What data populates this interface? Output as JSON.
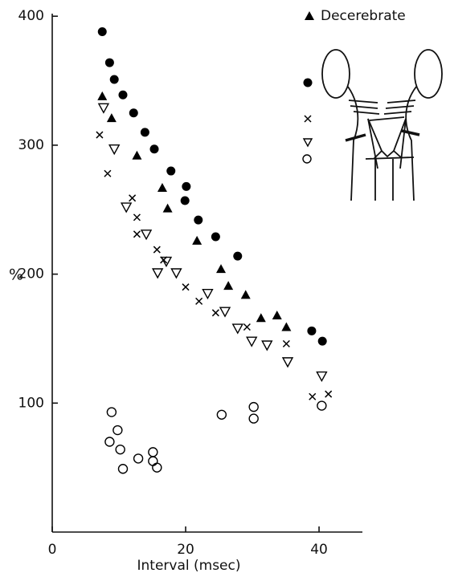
{
  "chart_data": {
    "type": "scatter",
    "xlabel": "Interval (msec)",
    "ylabel": "%",
    "xlim": [
      0,
      46.5
    ],
    "ylim": [
      0,
      402
    ],
    "xticks": [
      0,
      20,
      40
    ],
    "yticks": [
      100,
      200,
      300,
      400
    ],
    "legend": "upper right",
    "series": [
      {
        "marker": "filled-circle",
        "color": "#000000",
        "x": [
          7.5,
          8.6,
          9.3,
          10.6,
          12.2,
          13.9,
          15.3,
          17.8,
          20.1,
          19.9,
          21.9,
          24.5,
          27.8,
          38.9,
          40.5
        ],
        "values": [
          388,
          364,
          351,
          339,
          325,
          310,
          297,
          280,
          268,
          257,
          242,
          229,
          214,
          156,
          148
        ]
      },
      {
        "name": "Decerebrate",
        "marker": "filled-triangle",
        "color": "#000000",
        "x": [
          7.5,
          8.9,
          12.7,
          16.5,
          17.3,
          21.7,
          25.3,
          26.4,
          29,
          31.3,
          33.7,
          35.1
        ],
        "values": [
          338,
          321,
          292,
          267,
          251,
          226,
          204,
          191,
          184,
          166,
          168,
          159
        ]
      },
      {
        "marker": "cross",
        "color": "#000000",
        "x": [
          7.1,
          8.3,
          12,
          12.7,
          12.7,
          15.7,
          16.7,
          20,
          22,
          24.5,
          29.2,
          35.1,
          39,
          41.4
        ],
        "values": [
          308,
          278,
          259,
          244,
          231,
          219,
          211,
          190,
          179,
          170,
          159,
          146,
          105,
          107
        ]
      },
      {
        "marker": "open-down-triangle",
        "color": "#000000",
        "x": [
          7.7,
          9.3,
          11.1,
          14.1,
          15.8,
          17.1,
          18.6,
          23.3,
          25.9,
          27.8,
          29.9,
          32.2,
          35.3,
          40.4
        ],
        "values": [
          329,
          297,
          252,
          231,
          201,
          210,
          201,
          185,
          171,
          158,
          148,
          145,
          132,
          121
        ]
      },
      {
        "marker": "open-circle",
        "color": "#000000",
        "x": [
          8.9,
          8.6,
          9.8,
          10.2,
          10.6,
          12.9,
          15.1,
          15.1,
          15.7,
          25.4,
          30.2,
          30.2,
          40.4
        ],
        "values": [
          93,
          70,
          79,
          64,
          49,
          57,
          62,
          55,
          50,
          91,
          97,
          88,
          98
        ]
      }
    ]
  }
}
